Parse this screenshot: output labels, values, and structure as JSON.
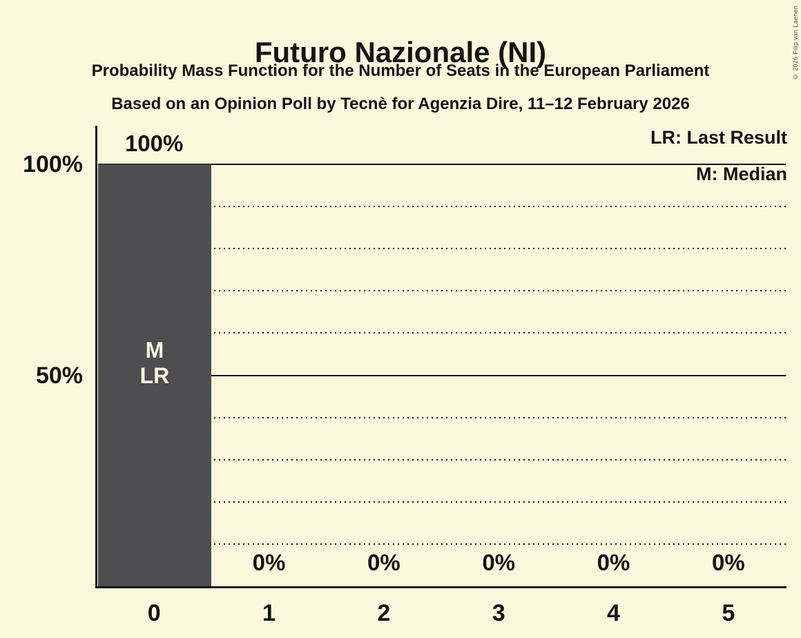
{
  "header": {
    "title": "Futuro Nazionale (NI)",
    "subtitle": "Probability Mass Function for the Number of Seats in the European Parliament",
    "poll_info": "Based on an Opinion Poll by Tecnè for Agenzia Dire, 11–12 February 2026"
  },
  "legend": {
    "last_result": "LR: Last Result",
    "median": "M: Median"
  },
  "copyright": "© 2026 Filip van Laenen",
  "colors": {
    "background": "#FCF8DE",
    "bar": "#4E4D4F",
    "text": "#141414",
    "line": "#141414",
    "bar_label": "#FAF6DC"
  },
  "chart_data": {
    "type": "bar",
    "title": "Futuro Nazionale (NI)",
    "subtitle": "Probability Mass Function for the Number of Seats in the European Parliament",
    "source_note": "Based on an Opinion Poll by Tecnè for Agenzia Dire, 11–12 February 2026",
    "categories": [
      "0",
      "1",
      "2",
      "3",
      "4",
      "5"
    ],
    "values": [
      100,
      0,
      0,
      0,
      0,
      0
    ],
    "value_labels": [
      "100%",
      "0%",
      "0%",
      "0%",
      "0%",
      "0%"
    ],
    "bar_annotations": [
      [
        "M",
        "LR"
      ],
      [],
      [],
      [],
      [],
      []
    ],
    "annotation_legend": {
      "LR": "Last Result",
      "M": "Median"
    },
    "xlabel": "",
    "ylabel": "",
    "y_axis": {
      "range": [
        0,
        100
      ],
      "dotted_step": 10,
      "solid_lines": [
        50,
        100
      ],
      "ticks": [
        {
          "value": 100,
          "label": "100%"
        },
        {
          "value": 50,
          "label": "50%"
        }
      ]
    },
    "grid": "horizontal-dotted",
    "legend_position": "top-right"
  }
}
